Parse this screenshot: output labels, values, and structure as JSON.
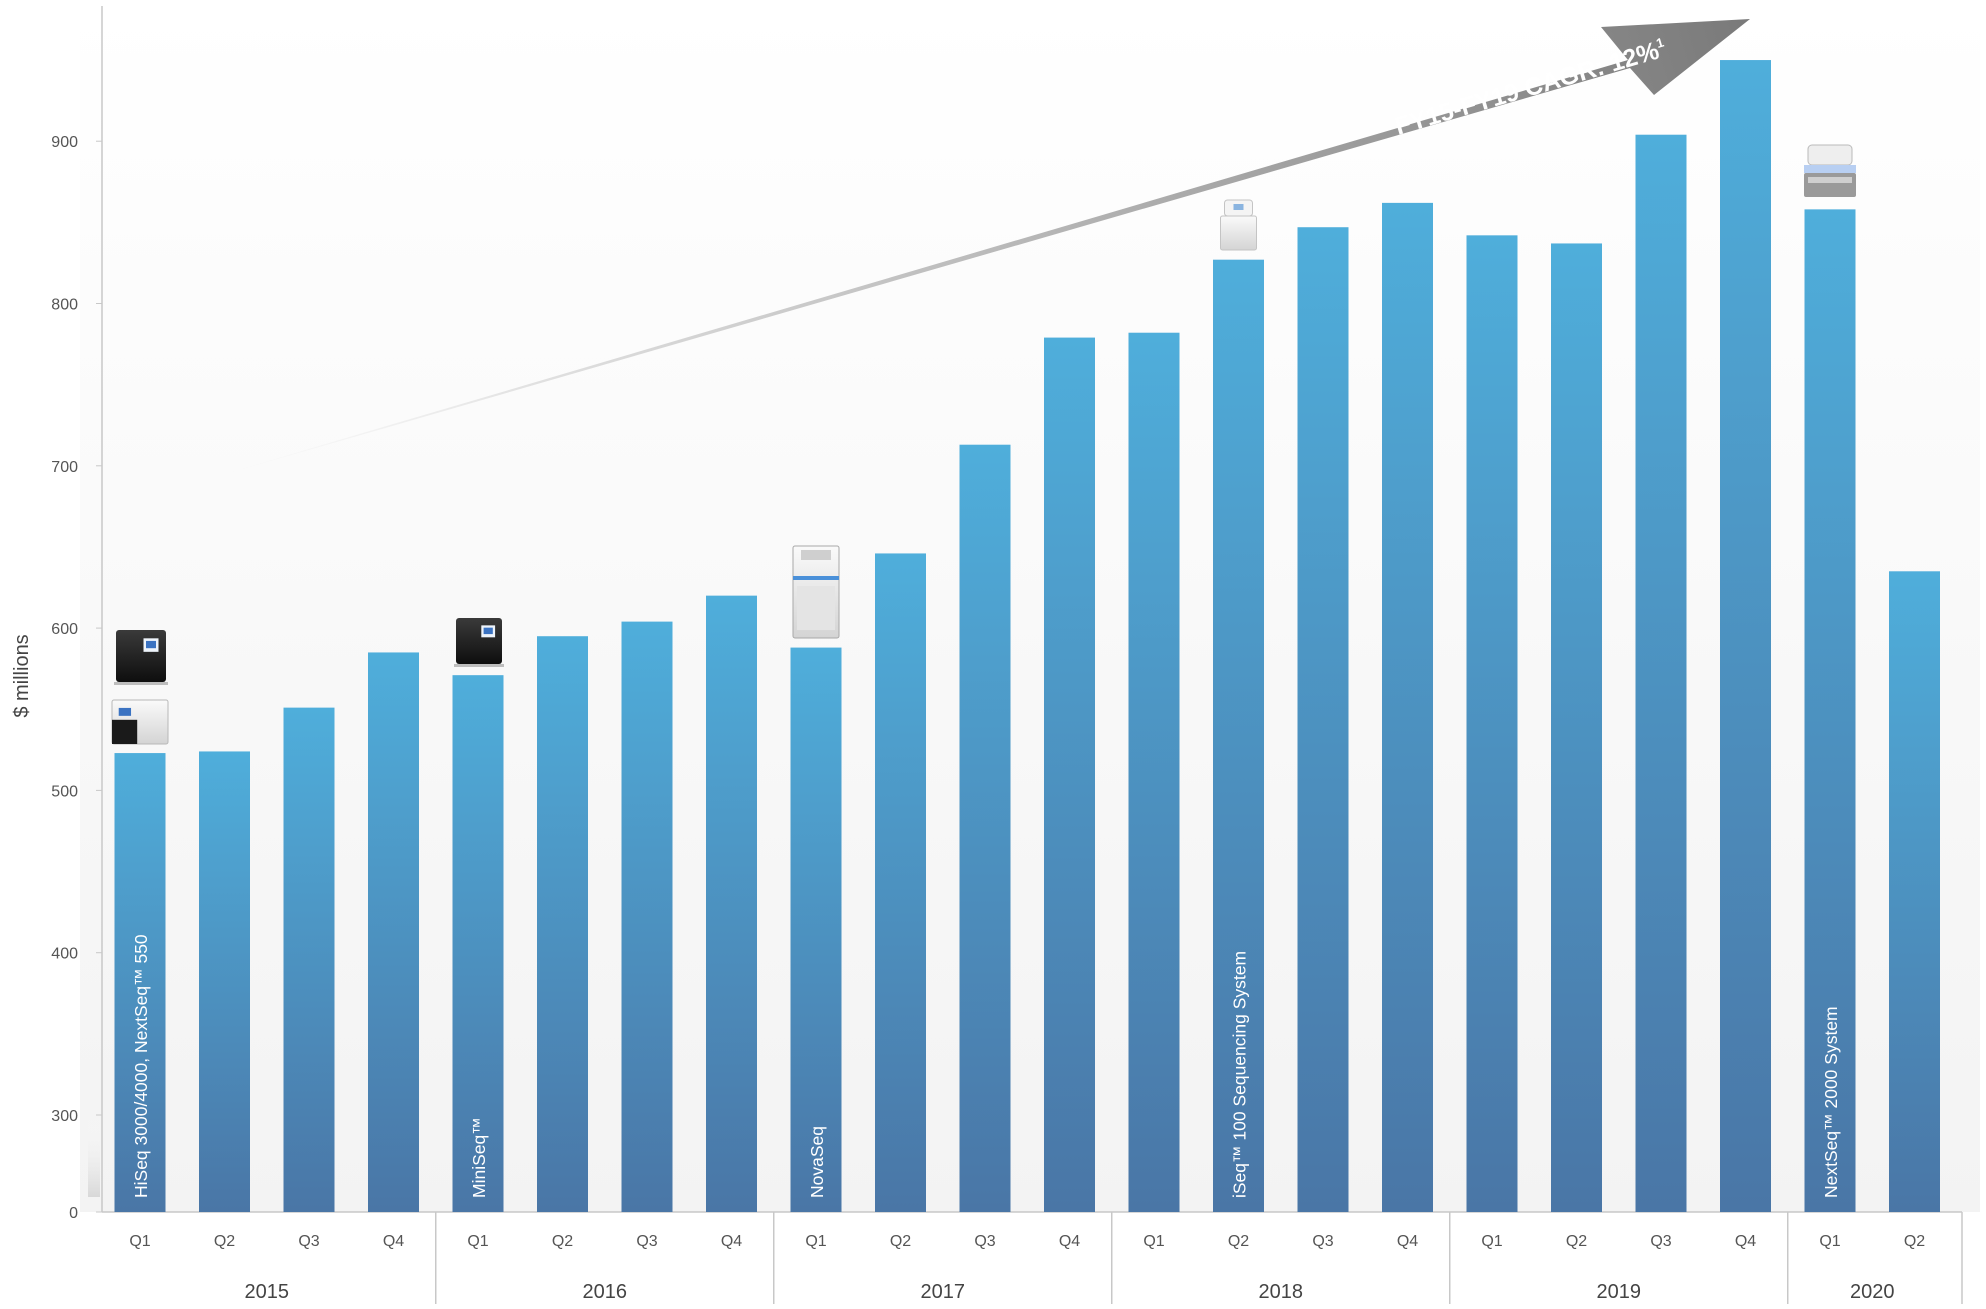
{
  "chart_data": {
    "type": "bar",
    "title": "",
    "xlabel": "",
    "ylabel": "$ millions",
    "ylim": [
      0,
      950
    ],
    "yaxis_break": true,
    "yticks": [
      0,
      300,
      400,
      500,
      600,
      700,
      800,
      900
    ],
    "grid": false,
    "legend": "none",
    "categories": [
      "Q1",
      "Q2",
      "Q3",
      "Q4",
      "Q1",
      "Q2",
      "Q3",
      "Q4",
      "Q1",
      "Q2",
      "Q3",
      "Q4",
      "Q1",
      "Q2",
      "Q3",
      "Q4",
      "Q1",
      "Q2",
      "Q3",
      "Q4",
      "Q1",
      "Q2"
    ],
    "years": [
      {
        "label": "2015",
        "count": 4
      },
      {
        "label": "2016",
        "count": 4
      },
      {
        "label": "2017",
        "count": 4
      },
      {
        "label": "2018",
        "count": 4
      },
      {
        "label": "2019",
        "count": 4
      },
      {
        "label": "2020",
        "count": 2
      }
    ],
    "values": [
      523,
      524,
      551,
      585,
      571,
      595,
      604,
      620,
      588,
      646,
      713,
      779,
      782,
      827,
      847,
      862,
      842,
      837,
      904,
      950,
      858,
      635
    ],
    "bar_annotations": [
      {
        "index": 0,
        "text": "HiSeq  3000/4000, NextSeq™ 550"
      },
      {
        "index": 4,
        "text": "MiniSeq™"
      },
      {
        "index": 8,
        "text": "NovaSeq"
      },
      {
        "index": 13,
        "text": "iSeq™ 100 Sequencing System"
      },
      {
        "index": 20,
        "text": "NextSeq™ 2000 System"
      }
    ],
    "trend_arrow": {
      "label": "FY15-FY19 CAGR: 12%",
      "footnote": "1"
    },
    "colors": {
      "bar_top": "#4faedb",
      "bar_bottom": "#4a76a6",
      "axis": "#c8c8c8",
      "tick_text": "#555555",
      "arrow_start": "#ffffff",
      "arrow_end": "#7a7a7a"
    }
  }
}
